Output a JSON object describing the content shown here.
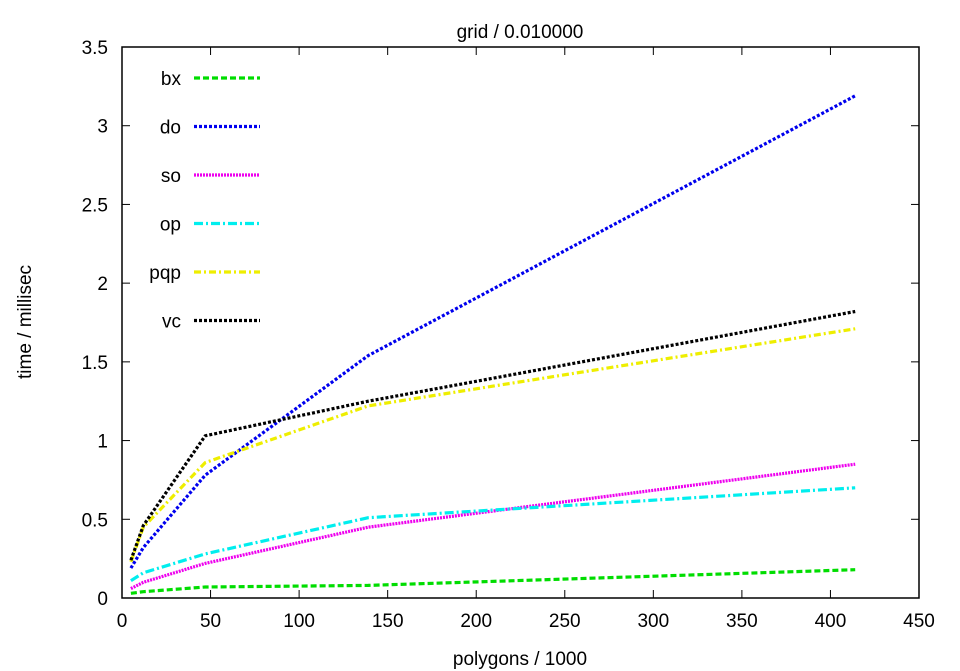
{
  "chart_data": {
    "type": "line",
    "title": "grid / 0.010000",
    "xlabel": "polygons / 1000",
    "ylabel": "time / millisec",
    "xlim": [
      0,
      450
    ],
    "ylim": [
      0,
      3.5
    ],
    "xticks": [
      0,
      50,
      100,
      150,
      200,
      250,
      300,
      350,
      400,
      450
    ],
    "yticks": [
      0,
      0.5,
      1,
      1.5,
      2,
      2.5,
      3,
      3.5
    ],
    "xtick_labels": [
      "0",
      "50",
      "100",
      "150",
      "200",
      "250",
      "300",
      "350",
      "400",
      "450"
    ],
    "ytick_labels": [
      "0",
      "0.5",
      "1",
      "1.5",
      "2",
      "2.5",
      "3",
      "3.5"
    ],
    "grid": false,
    "legend_position": "top-left",
    "x": [
      5,
      12,
      47,
      139,
      414
    ],
    "series": [
      {
        "name": "bx",
        "color": "#00dd00",
        "dash": "6,3",
        "values": [
          0.03,
          0.04,
          0.07,
          0.08,
          0.18
        ]
      },
      {
        "name": "do",
        "color": "#0000ee",
        "dash": "3,2",
        "values": [
          0.19,
          0.32,
          0.78,
          1.54,
          3.19
        ]
      },
      {
        "name": "so",
        "color": "#ee00ee",
        "dash": "2,1",
        "values": [
          0.06,
          0.1,
          0.22,
          0.45,
          0.85
        ]
      },
      {
        "name": "op",
        "color": "#00eeee",
        "dash": "9,3,2,3",
        "values": [
          0.11,
          0.16,
          0.28,
          0.51,
          0.7
        ]
      },
      {
        "name": "pqp",
        "color": "#eeee00",
        "dash": "7,3,2,3",
        "values": [
          0.23,
          0.45,
          0.86,
          1.22,
          1.71
        ]
      },
      {
        "name": "vc",
        "color": "#000000",
        "dash": "3,2",
        "values": [
          0.24,
          0.46,
          1.03,
          1.25,
          1.82
        ]
      }
    ]
  }
}
